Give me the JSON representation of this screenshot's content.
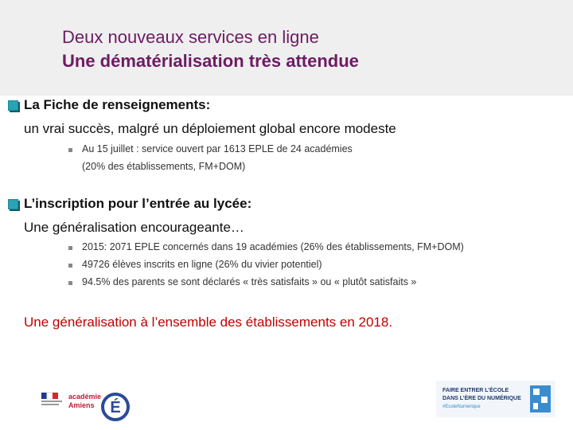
{
  "header": {
    "title": "Deux nouveaux services en ligne",
    "subtitle": "Une dématérialisation très attendue"
  },
  "sections": [
    {
      "heading": "La Fiche de renseignements:",
      "text": "un vrai succès, malgré un déploiement global encore modeste",
      "bullets": [
        [
          "Au 15 juillet : service ouvert par 1613 EPLE de 24 académies",
          "(20% des établissements, FM+DOM)"
        ]
      ]
    },
    {
      "heading": "L’inscription pour l’entrée au lycée:",
      "text": "Une généralisation encourageante…",
      "bullets": [
        [
          "2015: 2071 EPLE concernés dans 19 académies (26% des établissements, FM+DOM)"
        ],
        [
          "49726 élèves inscrits en ligne (26% du vivier potentiel)"
        ],
        [
          "94.5% des parents se sont déclarés « très satisfaits » ou « plutôt satisfaits »"
        ]
      ]
    }
  ],
  "conclusion": "Une généralisation à l’ensemble des établissements en 2018.",
  "footer": {
    "logo_left": [
      "académie",
      "Amiens"
    ],
    "logo_right": [
      "FAIRE ENTRER L’ÉCOLE",
      "DANS L’ÈRE DU NUMÉRIQUE",
      "#EcoleNumerique"
    ]
  }
}
